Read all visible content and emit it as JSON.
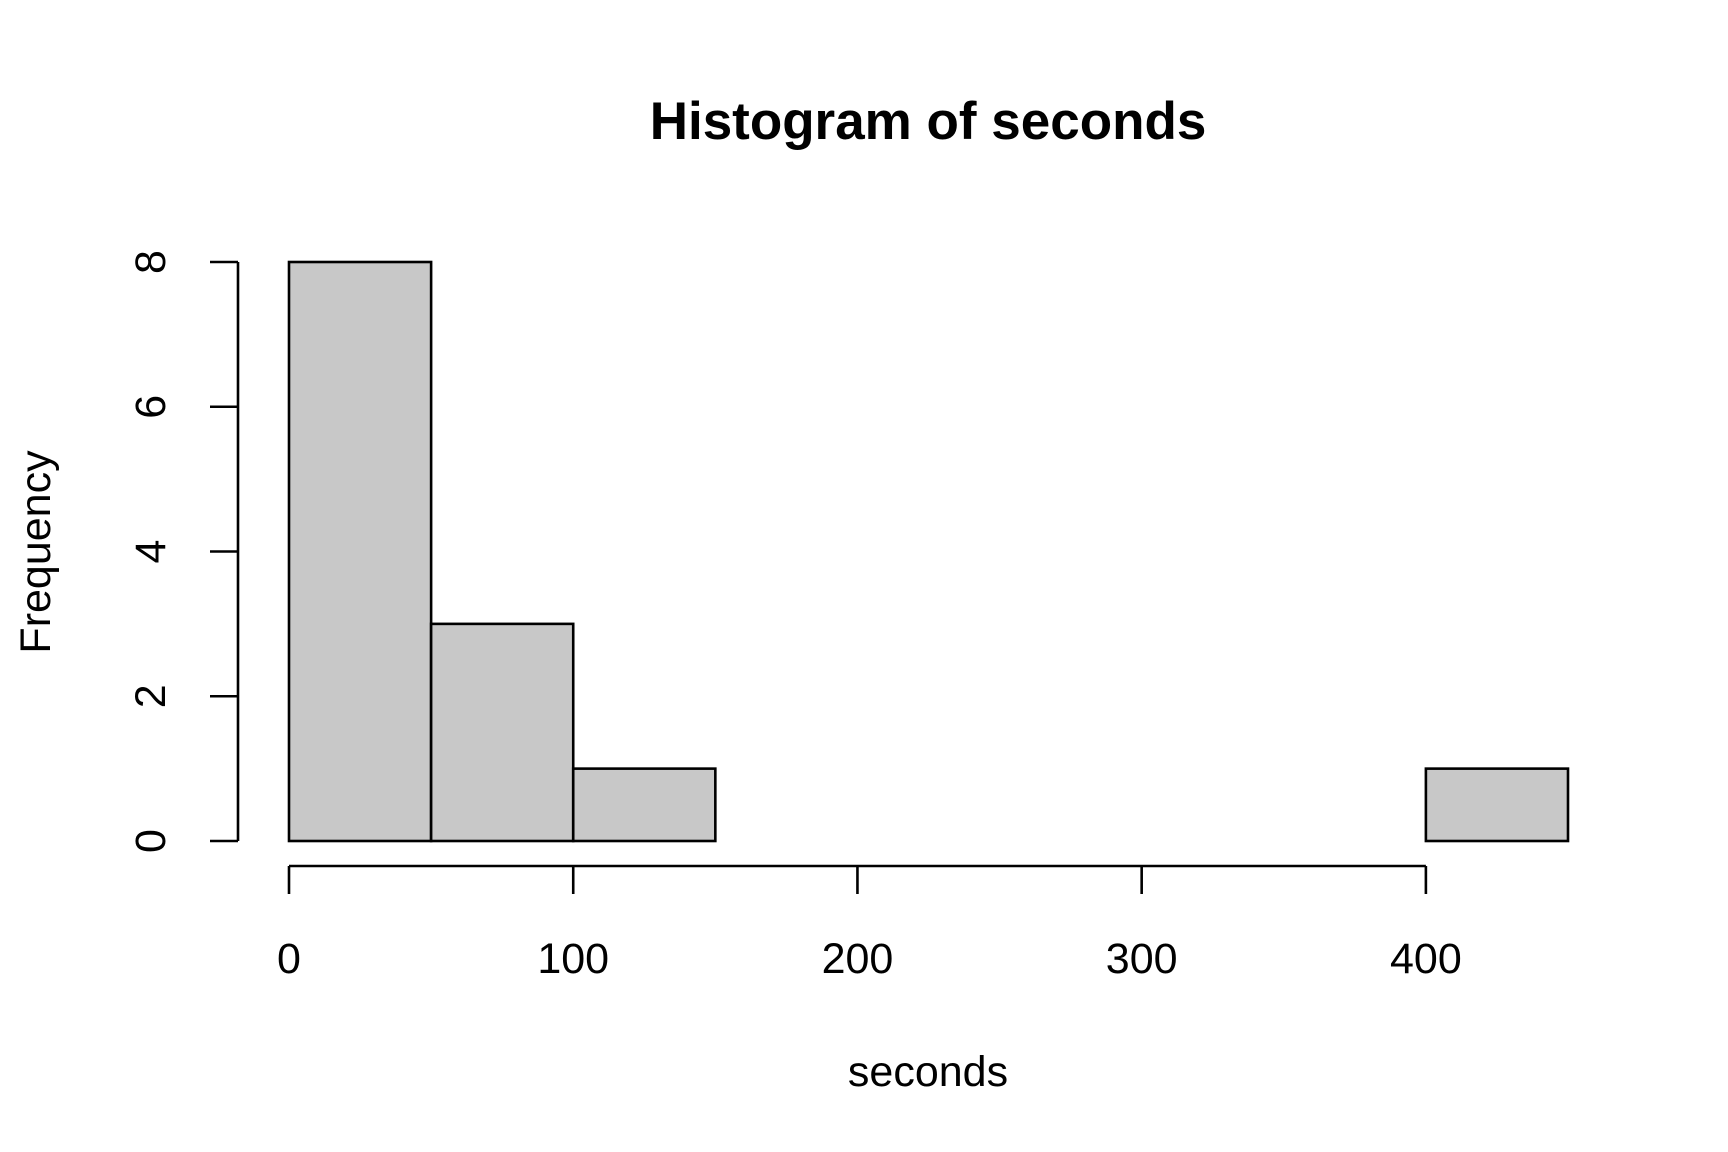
{
  "chart_data": {
    "type": "bar",
    "title": "Histogram of seconds",
    "xlabel": "seconds",
    "ylabel": "Frequency",
    "bins": [
      {
        "start": 0,
        "end": 50,
        "count": 8
      },
      {
        "start": 50,
        "end": 100,
        "count": 3
      },
      {
        "start": 100,
        "end": 150,
        "count": 1
      },
      {
        "start": 150,
        "end": 200,
        "count": 0
      },
      {
        "start": 200,
        "end": 250,
        "count": 0
      },
      {
        "start": 250,
        "end": 300,
        "count": 0
      },
      {
        "start": 300,
        "end": 350,
        "count": 0
      },
      {
        "start": 350,
        "end": 400,
        "count": 0
      },
      {
        "start": 400,
        "end": 450,
        "count": 1
      }
    ],
    "x_ticks": [
      0,
      100,
      200,
      300,
      400
    ],
    "y_ticks": [
      0,
      2,
      4,
      6,
      8
    ],
    "xlim": [
      0,
      450
    ],
    "ylim": [
      0,
      8
    ],
    "bar_color": "#c8c8c8",
    "grid": false,
    "legend": "none"
  }
}
